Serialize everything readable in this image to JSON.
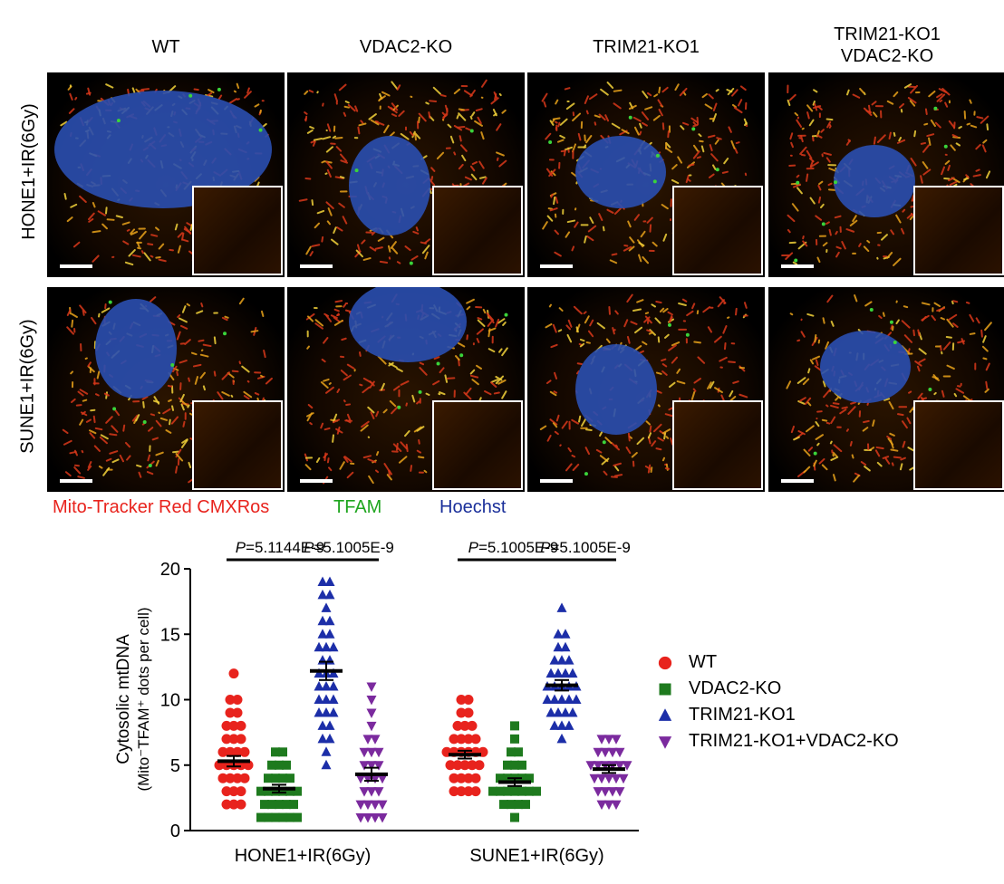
{
  "figure": {
    "columns": [
      "WT",
      "VDAC2-KO",
      "TRIM21-KO1",
      "TRIM21-KO1\nVDAC2-KO"
    ],
    "rows": [
      "HONE1+IR(6Gy)",
      "SUNE1+IR(6Gy)"
    ],
    "stain_legend": [
      {
        "label": "Mito-Tracker Red CMXRos",
        "color": "#e8231d"
      },
      {
        "label": "TFAM",
        "color": "#1fa51f"
      },
      {
        "label": "Hoechst",
        "color": "#1a2f9a"
      }
    ]
  },
  "chart_data": {
    "type": "scatter",
    "ylabel_line1": "Cytosolic mtDNA",
    "ylabel_line2": "(Mito⁻TFAM⁺ dots per cell)",
    "ylim": [
      0,
      20
    ],
    "yticks": [
      0,
      5,
      10,
      15,
      20
    ],
    "categories": [
      "HONE1+IR(6Gy)",
      "SUNE1+IR(6Gy)"
    ],
    "series": [
      {
        "name": "WT",
        "color": "#e8231d",
        "marker": "circle",
        "groups": [
          {
            "mean": 5.3,
            "sem": 0.4,
            "values": [
              12,
              10,
              10,
              9,
              9,
              8,
              8,
              8,
              7,
              7,
              7,
              6,
              6,
              6,
              6,
              5,
              5,
              5,
              5,
              5,
              4,
              4,
              4,
              4,
              3,
              3,
              3,
              2,
              2,
              2
            ]
          },
          {
            "mean": 5.8,
            "sem": 0.3,
            "values": [
              10,
              10,
              9,
              9,
              8,
              8,
              8,
              7,
              7,
              7,
              7,
              6,
              6,
              6,
              6,
              6,
              6,
              5,
              5,
              5,
              5,
              5,
              4,
              4,
              4,
              4,
              3,
              3,
              3,
              3
            ]
          }
        ]
      },
      {
        "name": "VDAC2-KO",
        "color": "#1e7a1e",
        "marker": "square",
        "groups": [
          {
            "mean": 3.2,
            "sem": 0.3,
            "values": [
              6,
              6,
              5,
              5,
              5,
              4,
              4,
              4,
              4,
              3,
              3,
              3,
              3,
              3,
              3,
              2,
              2,
              2,
              2,
              2,
              1,
              1,
              1,
              1,
              1,
              1
            ]
          },
          {
            "mean": 3.7,
            "sem": 0.3,
            "values": [
              8,
              7,
              6,
              6,
              5,
              5,
              5,
              4,
              4,
              4,
              4,
              4,
              3,
              3,
              3,
              3,
              3,
              3,
              3,
              2,
              2,
              2,
              2,
              1
            ]
          }
        ]
      },
      {
        "name": "TRIM21-KO1",
        "color": "#1c2ea8",
        "marker": "triangle",
        "groups": [
          {
            "mean": 12.2,
            "sem": 0.7,
            "values": [
              19,
              19,
              18,
              18,
              17,
              16,
              16,
              15,
              15,
              14,
              14,
              14,
              13,
              13,
              12,
              12,
              12,
              11,
              11,
              11,
              10,
              10,
              10,
              9,
              9,
              9,
              8,
              8,
              7,
              7,
              6,
              5
            ]
          },
          {
            "mean": 11.1,
            "sem": 0.4,
            "values": [
              17,
              15,
              15,
              14,
              14,
              13,
              13,
              13,
              12,
              12,
              12,
              12,
              11,
              11,
              11,
              11,
              11,
              10,
              10,
              10,
              10,
              10,
              9,
              9,
              9,
              9,
              8,
              8,
              8,
              7
            ]
          }
        ]
      },
      {
        "name": "TRIM21-KO1+VDAC2-KO",
        "color": "#7b2a9e",
        "marker": "triangle-down",
        "groups": [
          {
            "mean": 4.3,
            "sem": 0.5,
            "values": [
              11,
              10,
              9,
              8,
              7,
              7,
              6,
              6,
              6,
              5,
              5,
              5,
              4,
              4,
              4,
              4,
              3,
              3,
              3,
              2,
              2,
              2,
              2,
              1,
              1,
              1,
              1
            ]
          },
          {
            "mean": 4.7,
            "sem": 0.3,
            "values": [
              7,
              7,
              7,
              6,
              6,
              6,
              6,
              5,
              5,
              5,
              5,
              5,
              5,
              4,
              4,
              4,
              4,
              4,
              3,
              3,
              3,
              3,
              2,
              2,
              2
            ]
          }
        ]
      }
    ],
    "p_values": [
      {
        "label": "=5.1144E-9",
        "prefix": "P",
        "category": 0,
        "from_series": 0,
        "to_series": 2
      },
      {
        "label": "=5.1005E-9",
        "prefix": "P",
        "category": 0,
        "from_series": 2,
        "to_series": 3
      },
      {
        "label": "=5.1005E-9",
        "prefix": "P",
        "category": 1,
        "from_series": 0,
        "to_series": 2
      },
      {
        "label": "=5.1005E-9",
        "prefix": "P",
        "category": 1,
        "from_series": 2,
        "to_series": 3
      }
    ],
    "legend_position": "right"
  }
}
